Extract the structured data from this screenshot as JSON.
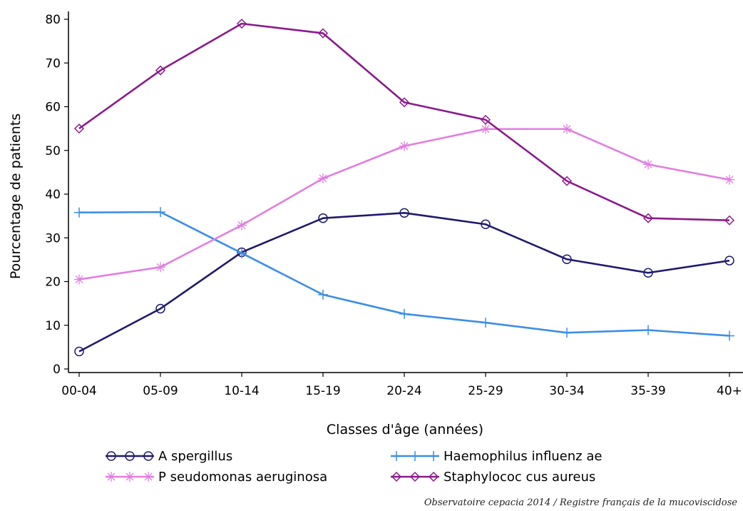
{
  "chart_data": {
    "type": "line",
    "xlabel": "Classes d'âge (années)",
    "ylabel": "Pourcentage de patients",
    "categories": [
      "00-04",
      "05-09",
      "10-14",
      "15-19",
      "20-24",
      "25-29",
      "30-34",
      "35-39",
      "40+"
    ],
    "ylim": [
      0,
      80
    ],
    "yticks": [
      0,
      10,
      20,
      30,
      40,
      50,
      60,
      70,
      80
    ],
    "grid": false,
    "legend_position": "bottom",
    "series": [
      {
        "name": "A spergillus",
        "marker": "circle",
        "color": "#1f1a6e",
        "values": [
          4,
          13.8,
          26.7,
          34.5,
          35.7,
          33.1,
          25.1,
          22,
          24.8
        ]
      },
      {
        "name": "Haemophilus influenz ae",
        "marker": "plus",
        "color": "#3d8ee6",
        "values": [
          35.8,
          35.9,
          26.5,
          17,
          12.6,
          10.6,
          8.3,
          8.9,
          7.6
        ]
      },
      {
        "name": "P seudomonas aeruginosa",
        "marker": "star",
        "color": "#e27ee0",
        "values": [
          20.5,
          23.3,
          32.9,
          43.6,
          51,
          54.9,
          54.9,
          46.8,
          43.3
        ]
      },
      {
        "name": "Staphylococ cus aureus",
        "marker": "diamond",
        "color": "#8b1a8b",
        "values": [
          55,
          68.3,
          79,
          76.8,
          61,
          57,
          43,
          34.5,
          34
        ]
      }
    ],
    "source": "Observatoire cepacia 2014 / Registre français de la mucoviscidose"
  }
}
